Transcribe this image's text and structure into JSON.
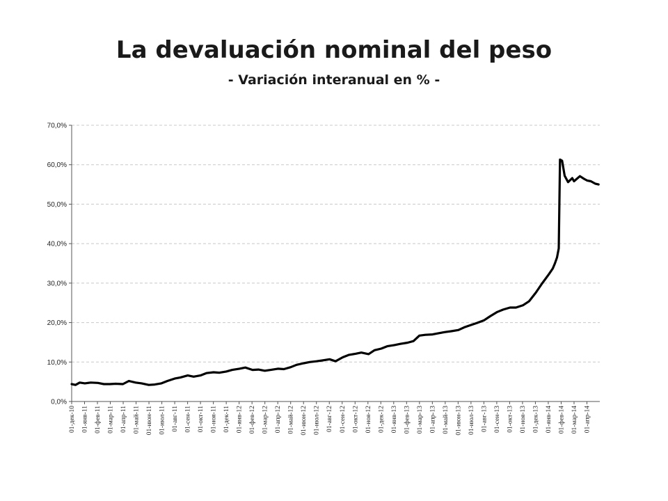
{
  "title": "La devaluación nominal del peso",
  "subtitle": "- Variación interanual en % -",
  "chart_data": {
    "type": "line",
    "title": "La devaluación nominal del peso",
    "subtitle": "- Variación interanual en % -",
    "xlabel": "",
    "ylabel": "",
    "ylim": [
      0,
      70
    ],
    "y_ticks": [
      "0,0%",
      "10,0%",
      "20,0%",
      "30,0%",
      "40,0%",
      "50,0%",
      "60,0%",
      "70,0%"
    ],
    "grid": true,
    "legend": "none",
    "line_color": "#000000",
    "x_ticks": [
      "01-дек-10",
      "01-янв-11",
      "01-фев-11",
      "01-мар-11",
      "01-апр-11",
      "01-май-11",
      "01-июн-11",
      "01-июл-11",
      "01-авг-11",
      "01-сен-11",
      "01-окт-11",
      "01-ноя-11",
      "01-дек-11",
      "01-янв-12",
      "01-фев-12",
      "01-мар-12",
      "01-апр-12",
      "01-май-12",
      "01-июн-12",
      "01-июл-12",
      "01-авг-12",
      "01-сен-12",
      "01-окт-12",
      "01-ноя-12",
      "01-дек-12",
      "01-янв-13",
      "01-фев-13",
      "01-мар-13",
      "01-апр-13",
      "01-май-13",
      "01-июн-13",
      "01-июл-13",
      "01-авг-13",
      "01-сен-13",
      "01-окт-13",
      "01-ноя-13",
      "01-дек-13",
      "01-янв-14",
      "01-фев-14",
      "01-мар-14",
      "01-апр-14"
    ],
    "series": [
      {
        "x": [
          "2010-12-01",
          "2010-12-10",
          "2010-12-20",
          "2011-01-01",
          "2011-01-15",
          "2011-02-01",
          "2011-02-15",
          "2011-03-01",
          "2011-03-15",
          "2011-04-01",
          "2011-04-15",
          "2011-05-01",
          "2011-05-15",
          "2011-06-01",
          "2011-06-15",
          "2011-07-01",
          "2011-07-15",
          "2011-08-01",
          "2011-08-15",
          "2011-09-01",
          "2011-09-15",
          "2011-10-01",
          "2011-10-15",
          "2011-11-01",
          "2011-11-15",
          "2011-12-01",
          "2011-12-15",
          "2012-01-01",
          "2012-01-15",
          "2012-02-01",
          "2012-02-15",
          "2012-03-01",
          "2012-03-15",
          "2012-04-01",
          "2012-04-15",
          "2012-05-01",
          "2012-05-15",
          "2012-06-01",
          "2012-06-15",
          "2012-07-01",
          "2012-07-15",
          "2012-08-01",
          "2012-08-15",
          "2012-09-01",
          "2012-09-15",
          "2012-10-01",
          "2012-10-15",
          "2012-11-01",
          "2012-11-15",
          "2012-12-01",
          "2012-12-15",
          "2013-01-01",
          "2013-01-15",
          "2013-02-01",
          "2013-02-15",
          "2013-03-01",
          "2013-03-15",
          "2013-04-01",
          "2013-04-15",
          "2013-05-01",
          "2013-05-15",
          "2013-06-01",
          "2013-06-15",
          "2013-07-01",
          "2013-07-15",
          "2013-08-01",
          "2013-08-15",
          "2013-09-01",
          "2013-09-15",
          "2013-10-01",
          "2013-10-15",
          "2013-11-01",
          "2013-11-15",
          "2013-12-01",
          "2013-12-15",
          "2014-01-01",
          "2014-01-10",
          "2014-01-15",
          "2014-01-20",
          "2014-01-24",
          "2014-01-27",
          "2014-02-01",
          "2014-02-07",
          "2014-02-15",
          "2014-02-25",
          "2014-03-01",
          "2014-03-15",
          "2014-03-25",
          "2014-04-01",
          "2014-04-10",
          "2014-04-20",
          "2014-04-28"
        ],
        "values": [
          4.4,
          4.2,
          4.8,
          4.6,
          4.8,
          4.7,
          4.4,
          4.4,
          4.5,
          4.4,
          5.2,
          4.8,
          4.6,
          4.2,
          4.3,
          4.6,
          5.2,
          5.8,
          6.1,
          6.6,
          6.3,
          6.6,
          7.2,
          7.4,
          7.3,
          7.6,
          8.0,
          8.3,
          8.6,
          8.0,
          8.1,
          7.8,
          8.0,
          8.3,
          8.2,
          8.7,
          9.3,
          9.7,
          10.0,
          10.2,
          10.4,
          10.7,
          10.2,
          11.2,
          11.8,
          12.1,
          12.4,
          12.0,
          13.0,
          13.4,
          14.0,
          14.3,
          14.6,
          14.9,
          15.3,
          16.7,
          16.9,
          17.0,
          17.3,
          17.6,
          17.8,
          18.1,
          18.8,
          19.4,
          19.9,
          20.6,
          21.6,
          22.7,
          23.3,
          23.8,
          23.8,
          24.4,
          25.4,
          27.6,
          29.8,
          32.3,
          33.7,
          35.0,
          36.5,
          38.8,
          61.3,
          61.0,
          57.2,
          55.6,
          56.6,
          55.8,
          57.1,
          56.4,
          56.0,
          55.8,
          55.2,
          55.0
        ]
      }
    ]
  }
}
